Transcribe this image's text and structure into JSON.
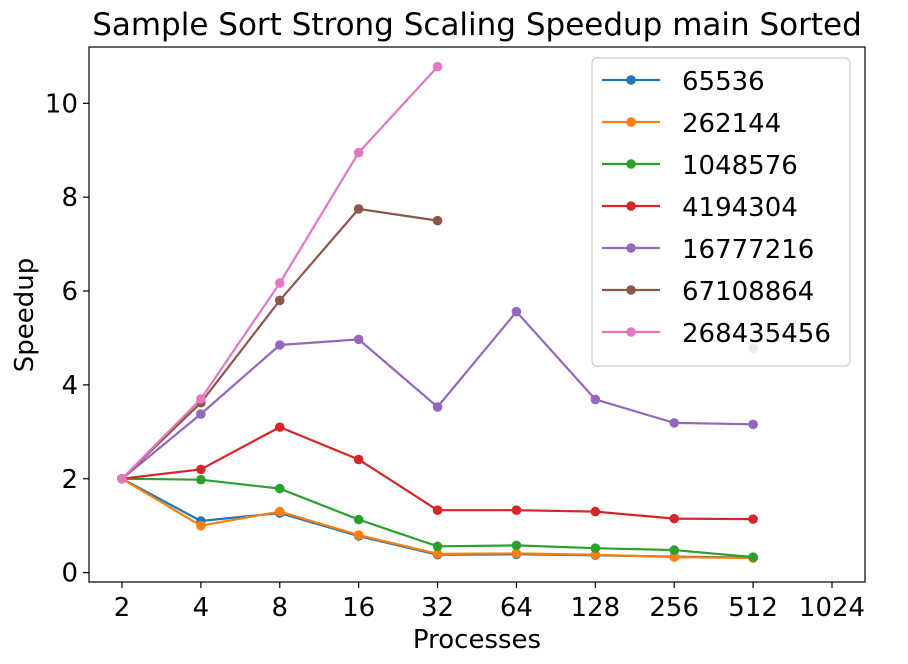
{
  "chart_data": {
    "type": "line",
    "title": "Sample Sort Strong Scaling Speedup main Sorted",
    "xlabel": "Processes",
    "ylabel": "Speedup",
    "x_scale": "log2",
    "x_ticks": [
      "2",
      "4",
      "8",
      "16",
      "32",
      "64",
      "128",
      "256",
      "512",
      "1024"
    ],
    "xlim": [
      2,
      1024
    ],
    "ylim": [
      -0.2,
      11.2
    ],
    "y_ticks": [
      "0",
      "2",
      "4",
      "6",
      "8",
      "10"
    ],
    "grid": false,
    "legend": "top-right",
    "series": [
      {
        "name": "65536",
        "color": "#1f77b4",
        "points": [
          [
            2,
            2.0
          ],
          [
            4,
            1.1
          ],
          [
            8,
            1.27
          ],
          [
            16,
            0.78
          ],
          [
            32,
            0.38
          ],
          [
            64,
            0.39
          ],
          [
            128,
            0.37
          ],
          [
            256,
            0.34
          ],
          [
            512,
            0.32
          ]
        ]
      },
      {
        "name": "262144",
        "color": "#ff7f0e",
        "points": [
          [
            2,
            2.0
          ],
          [
            4,
            1.0
          ],
          [
            8,
            1.3
          ],
          [
            16,
            0.8
          ],
          [
            32,
            0.4
          ],
          [
            64,
            0.41
          ],
          [
            128,
            0.38
          ],
          [
            256,
            0.33
          ],
          [
            512,
            0.31
          ]
        ]
      },
      {
        "name": "1048576",
        "color": "#2ca02c",
        "points": [
          [
            2,
            2.0
          ],
          [
            4,
            1.98
          ],
          [
            8,
            1.79
          ],
          [
            16,
            1.13
          ],
          [
            32,
            0.56
          ],
          [
            64,
            0.58
          ],
          [
            128,
            0.52
          ],
          [
            256,
            0.48
          ],
          [
            512,
            0.33
          ]
        ]
      },
      {
        "name": "4194304",
        "color": "#d62728",
        "points": [
          [
            2,
            2.0
          ],
          [
            4,
            2.2
          ],
          [
            8,
            3.1
          ],
          [
            16,
            2.41
          ],
          [
            32,
            1.33
          ],
          [
            64,
            1.33
          ],
          [
            128,
            1.3
          ],
          [
            256,
            1.15
          ],
          [
            512,
            1.14
          ]
        ]
      },
      {
        "name": "16777216",
        "color": "#9467bd",
        "points": [
          [
            2,
            2.0
          ],
          [
            4,
            3.38
          ],
          [
            8,
            4.85
          ],
          [
            16,
            4.97
          ],
          [
            32,
            3.53
          ],
          [
            64,
            5.56
          ],
          [
            128,
            3.69
          ],
          [
            256,
            3.19
          ],
          [
            512,
            3.16
          ]
        ]
      },
      {
        "name": "67108864",
        "color": "#8c564b",
        "points": [
          [
            2,
            2.0
          ],
          [
            4,
            3.62
          ],
          [
            8,
            5.8
          ],
          [
            16,
            7.75
          ],
          [
            32,
            7.5
          ]
        ]
      },
      {
        "name": "268435456",
        "color": "#e377c2",
        "points": [
          [
            2,
            2.0
          ],
          [
            4,
            3.7
          ],
          [
            8,
            6.17
          ],
          [
            16,
            8.95
          ],
          [
            32,
            10.78
          ]
        ]
      }
    ],
    "extra_markers": [
      {
        "series": "16777216",
        "point": [
          512,
          4.78
        ]
      }
    ]
  }
}
